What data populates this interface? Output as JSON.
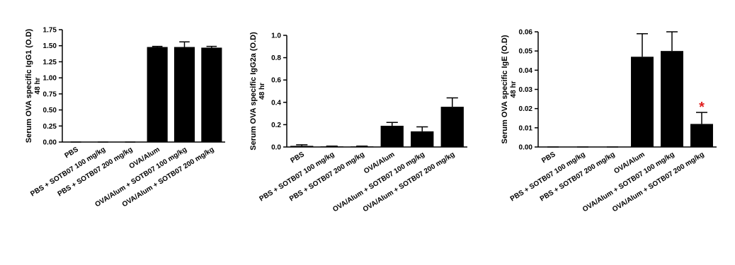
{
  "chart_data": [
    {
      "type": "bar",
      "ylabel": "Serum OVA specific IgG1 (O.D)",
      "ylabel2": "48 hr",
      "categories": [
        "PBS",
        "PBS + SOTB07 100 mg/kg",
        "PBS + SOTB07 200 mg/kg",
        "OVA/Alum",
        "OVA/Alum + SOTB07 100 mg/kg",
        "OVA/Alum + SOTB07 200 mg/kg"
      ],
      "values": [
        0,
        0,
        0,
        1.48,
        1.48,
        1.47
      ],
      "errors": [
        0,
        0,
        0,
        0.01,
        0.08,
        0.02
      ],
      "color": "#000000",
      "ylim": [
        0,
        1.75
      ],
      "yticks": [
        {
          "value": 0,
          "label": "0.00"
        },
        {
          "value": 0.25,
          "label": "0.25"
        },
        {
          "value": 0.5,
          "label": "0.50"
        },
        {
          "value": 0.75,
          "label": "0.75"
        },
        {
          "value": 1,
          "label": "1.00"
        },
        {
          "value": 1.25,
          "label": "1.25"
        },
        {
          "value": 1.5,
          "label": "1.50"
        },
        {
          "value": 1.75,
          "label": "1.75"
        }
      ]
    },
    {
      "type": "bar",
      "ylabel": "Serum OVA specific IgG2a (O.D)",
      "ylabel2": "48 hr",
      "categories": [
        "PBS",
        "PBS + SOTB07 100 mg/kg",
        "PBS + SOTB07 200 mg/kg",
        "OVA/Alum",
        "OVA/Alum + SOTB07 100 mg/kg",
        "OVA/Alum + SOTB07 200 mg/kg"
      ],
      "values": [
        0.01,
        0.005,
        0.005,
        0.19,
        0.14,
        0.36
      ],
      "errors": [
        0.01,
        0.003,
        0.003,
        0.03,
        0.04,
        0.08
      ],
      "color": "#000000",
      "ylim": [
        0,
        1.0
      ],
      "yticks": [
        {
          "value": 0,
          "label": "0.0"
        },
        0.2,
        0.4,
        0.6,
        0.8,
        {
          "value": 1,
          "label": "1.0"
        }
      ]
    },
    {
      "type": "bar",
      "ylabel": "Serum OVA specific IgE (O.D)",
      "ylabel2": "48 hr",
      "categories": [
        "PBS",
        "PBS + SOTB07 100 mg/kg",
        "PBS + SOTB07 200 mg/kg",
        "OVA/Alum",
        "OVA/Alum + SOTB07 100 mg/kg",
        "OVA/Alum + SOTB07 200 mg/kg"
      ],
      "values": [
        0,
        0,
        0,
        0.047,
        0.05,
        0.012
      ],
      "errors": [
        0,
        0,
        0,
        0.012,
        0.01,
        0.006
      ],
      "color": "#000000",
      "ylim": [
        0,
        0.06
      ],
      "yticks": [
        {
          "value": 0,
          "label": "0.00"
        },
        0.01,
        0.02,
        0.03,
        0.04,
        0.05,
        0.06
      ],
      "annotation": "*",
      "annotation_color": "#e02020"
    }
  ]
}
